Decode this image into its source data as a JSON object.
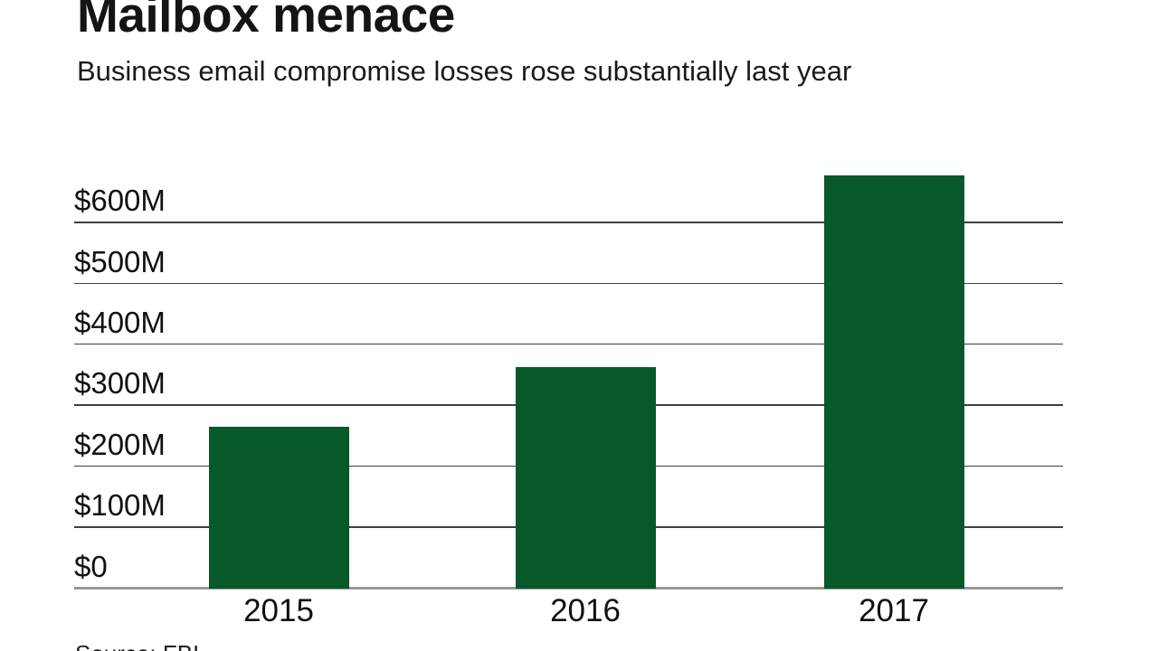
{
  "header": {
    "title": "Mailbox menace",
    "subtitle": "Business email compromise losses rose substantially last year"
  },
  "footer": {
    "source": "Source: FBI"
  },
  "colors": {
    "bar": "#07592a",
    "gridline": "#3e3e3e",
    "baseline": "#979797",
    "text": "#111111"
  },
  "chart_data": {
    "type": "bar",
    "categories": [
      "2015",
      "2016",
      "2017"
    ],
    "values": [
      263,
      361,
      676
    ],
    "unit": "USD millions",
    "title": "Mailbox menace",
    "subtitle": "Business email compromise losses rose substantially last year",
    "source": "Source: FBI",
    "xlabel": "",
    "ylabel": "",
    "ylim": [
      0,
      676
    ],
    "ytick_step": 100,
    "ytick_labels": [
      "$0",
      "$100M",
      "$200M",
      "$300M",
      "$400M",
      "$500M",
      "$600M"
    ],
    "grid": true,
    "legend": false,
    "bar_color": "#07592a"
  }
}
